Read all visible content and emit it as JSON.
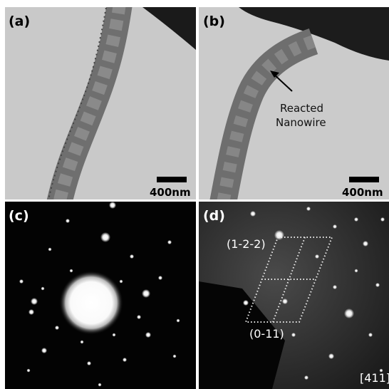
{
  "panels": [
    {
      "label": "(a)",
      "scale_bar": "400nm"
    },
    {
      "label": "(b)",
      "scale_bar": "400nm",
      "annotation": [
        "Reacted",
        "Nanowire"
      ]
    },
    {
      "label": "(c)"
    },
    {
      "label": "(d)",
      "plane_labels": [
        "(1-2-2)",
        "(0-11)"
      ],
      "zone_axis": "[411]"
    }
  ]
}
